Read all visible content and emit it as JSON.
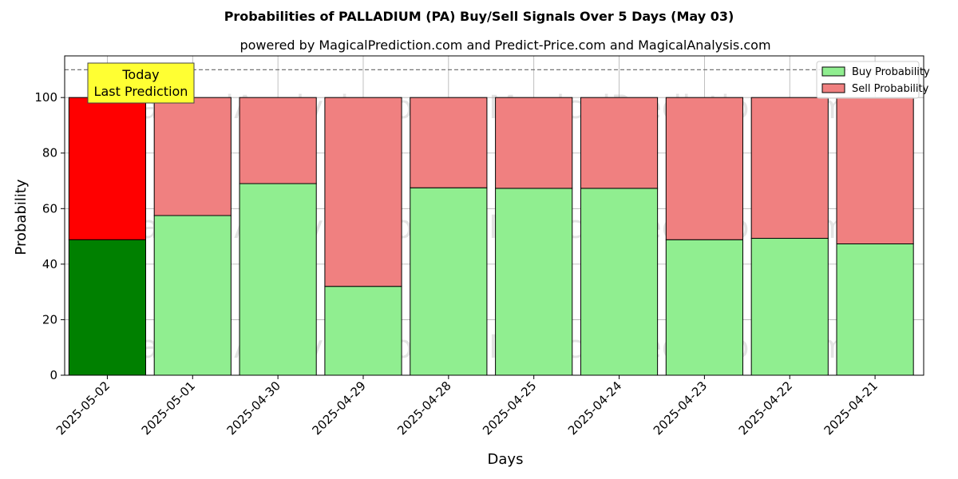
{
  "chart_data": {
    "type": "bar",
    "stacked": true,
    "title": "Probabilities of PALLADIUM (PA) Buy/Sell Signals Over 5 Days (May 03)",
    "subtitle": "powered by MagicalPrediction.com and Predict-Price.com and MagicalAnalysis.com",
    "xlabel": "Days",
    "ylabel": "Probability",
    "ylim": [
      0,
      115
    ],
    "yticks": [
      0,
      20,
      40,
      60,
      80,
      100
    ],
    "reference_line": 110,
    "grid": true,
    "legend_position": "top-right",
    "categories": [
      "2025-05-02",
      "2025-05-01",
      "2025-04-30",
      "2025-04-29",
      "2025-04-28",
      "2025-04-25",
      "2025-04-24",
      "2025-04-23",
      "2025-04-22",
      "2025-04-21"
    ],
    "series": [
      {
        "name": "Buy Probability",
        "color": "#90ee90",
        "highlight_color": "#008000",
        "values": [
          48.8,
          57.5,
          69.0,
          32.0,
          67.5,
          67.3,
          67.3,
          48.8,
          49.3,
          47.3
        ]
      },
      {
        "name": "Sell Probability",
        "color": "#f08080",
        "highlight_color": "#ff0000",
        "values": [
          51.2,
          42.5,
          31.0,
          68.0,
          32.5,
          32.7,
          32.7,
          51.2,
          50.7,
          52.7
        ]
      }
    ],
    "annotation": {
      "lines": [
        "Today",
        "Last Prediction"
      ],
      "category_index": 0,
      "color": "#ffff33"
    },
    "watermarks": [
      "MagicalAnalysis.com",
      "MagicalPrediction.com"
    ]
  }
}
